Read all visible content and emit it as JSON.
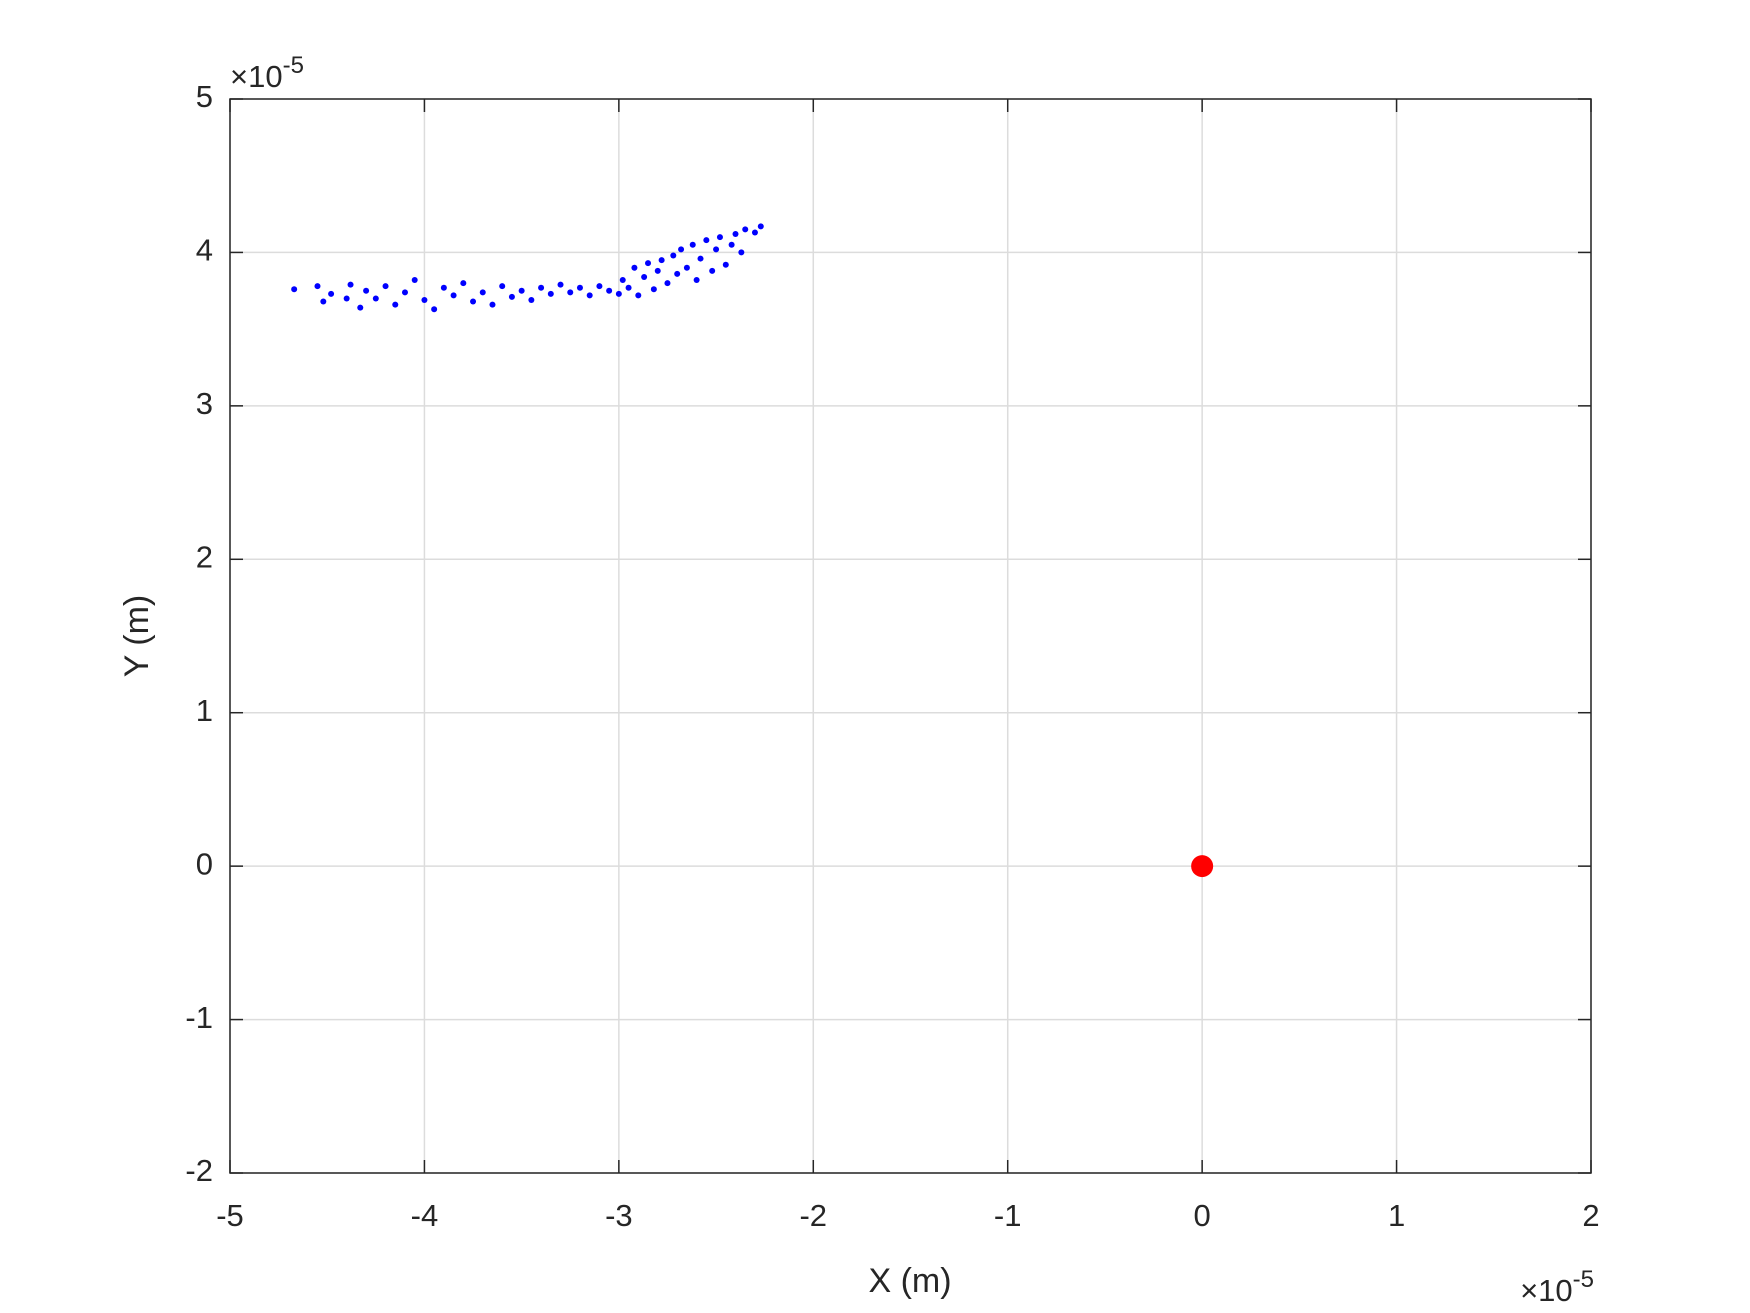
{
  "chart_data": {
    "type": "scatter",
    "x_label": "X (m)",
    "y_label": "Y (m)",
    "x_exponent": {
      "base": "×10",
      "power": "-5"
    },
    "y_exponent": {
      "base": "×10",
      "power": "-5"
    },
    "xlim": [
      -5,
      2
    ],
    "ylim": [
      -2,
      5
    ],
    "xticks": [
      -5,
      -4,
      -3,
      -2,
      -1,
      0,
      1,
      2
    ],
    "yticks": [
      -2,
      -1,
      0,
      1,
      2,
      3,
      4,
      5
    ],
    "grid": true,
    "series": [
      {
        "color": "#0000ff",
        "marker_size": 3,
        "x": [
          -4.67,
          -4.55,
          -4.52,
          -4.48,
          -4.4,
          -4.38,
          -4.33,
          -4.3,
          -4.25,
          -4.2,
          -4.15,
          -4.1,
          -4.05,
          -4.0,
          -3.95,
          -3.9,
          -3.85,
          -3.8,
          -3.75,
          -3.7,
          -3.65,
          -3.6,
          -3.55,
          -3.5,
          -3.45,
          -3.4,
          -3.35,
          -3.3,
          -3.25,
          -3.2,
          -3.15,
          -3.1,
          -3.05,
          -3.0,
          -2.98,
          -2.95,
          -2.92,
          -2.9,
          -2.87,
          -2.85,
          -2.82,
          -2.8,
          -2.78,
          -2.75,
          -2.72,
          -2.7,
          -2.68,
          -2.65,
          -2.62,
          -2.6,
          -2.58,
          -2.55,
          -2.52,
          -2.5,
          -2.48,
          -2.45,
          -2.42,
          -2.4,
          -2.37,
          -2.35,
          -2.3,
          -2.27
        ],
        "values": [
          3.76,
          3.78,
          3.68,
          3.73,
          3.7,
          3.79,
          3.64,
          3.75,
          3.7,
          3.78,
          3.66,
          3.74,
          3.82,
          3.69,
          3.63,
          3.77,
          3.72,
          3.8,
          3.68,
          3.74,
          3.66,
          3.78,
          3.71,
          3.75,
          3.69,
          3.77,
          3.73,
          3.79,
          3.74,
          3.77,
          3.72,
          3.78,
          3.75,
          3.73,
          3.82,
          3.77,
          3.9,
          3.72,
          3.84,
          3.93,
          3.76,
          3.88,
          3.95,
          3.8,
          3.98,
          3.86,
          4.02,
          3.9,
          4.05,
          3.82,
          3.96,
          4.08,
          3.88,
          4.02,
          4.1,
          3.92,
          4.05,
          4.12,
          4.0,
          4.15,
          4.13,
          4.17
        ]
      },
      {
        "color": "#ff0000",
        "marker_size": 11,
        "x": [
          0
        ],
        "values": [
          0
        ]
      }
    ]
  }
}
